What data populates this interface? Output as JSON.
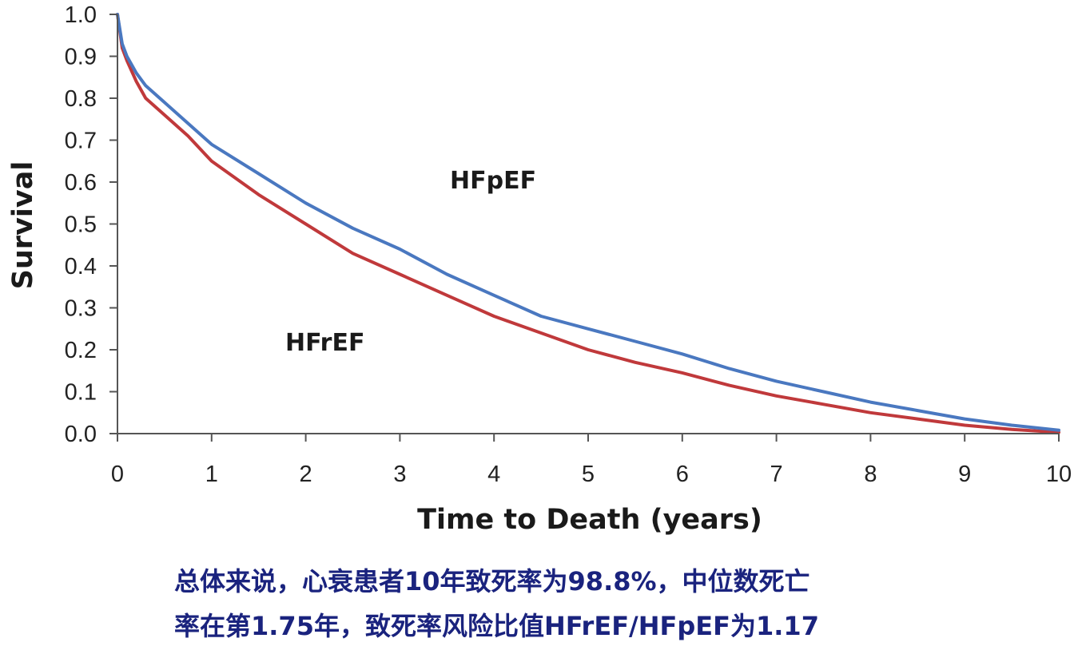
{
  "chart_data": {
    "type": "line",
    "xlabel": "Time to Death (years)",
    "ylabel": "Survival",
    "xlim": [
      0,
      10
    ],
    "ylim": [
      0,
      1
    ],
    "x_ticks": [
      "0",
      "1",
      "2",
      "3",
      "4",
      "5",
      "6",
      "7",
      "8",
      "9",
      "10"
    ],
    "y_ticks": [
      "0.0",
      "0.1",
      "0.2",
      "0.3",
      "0.4",
      "0.5",
      "0.6",
      "0.7",
      "0.8",
      "0.9",
      "1.0"
    ],
    "grid": false,
    "series": [
      {
        "name": "HFpEF",
        "color": "#4a78c0",
        "x": [
          0,
          0.05,
          0.1,
          0.2,
          0.3,
          0.5,
          0.75,
          1,
          1.5,
          2,
          2.5,
          3,
          3.5,
          4,
          4.5,
          5,
          5.5,
          6,
          6.5,
          7,
          7.5,
          8,
          8.5,
          9,
          9.5,
          10
        ],
        "y": [
          1.0,
          0.93,
          0.9,
          0.86,
          0.83,
          0.79,
          0.74,
          0.69,
          0.62,
          0.55,
          0.49,
          0.44,
          0.38,
          0.33,
          0.28,
          0.25,
          0.22,
          0.19,
          0.155,
          0.125,
          0.1,
          0.075,
          0.055,
          0.035,
          0.02,
          0.008
        ]
      },
      {
        "name": "HFrEF",
        "color": "#c0393b",
        "x": [
          0,
          0.05,
          0.1,
          0.2,
          0.3,
          0.5,
          0.75,
          1,
          1.5,
          2,
          2.5,
          3,
          3.5,
          4,
          4.5,
          5,
          5.5,
          6,
          6.5,
          7,
          7.5,
          8,
          8.5,
          9,
          9.5,
          10
        ],
        "y": [
          1.0,
          0.92,
          0.89,
          0.84,
          0.8,
          0.76,
          0.71,
          0.65,
          0.57,
          0.5,
          0.43,
          0.38,
          0.33,
          0.28,
          0.24,
          0.2,
          0.17,
          0.145,
          0.115,
          0.09,
          0.07,
          0.05,
          0.035,
          0.02,
          0.01,
          0.003
        ]
      }
    ]
  },
  "caption": {
    "line1": "总体来说，心衰患者10年致死率为98.8%，中位数死亡",
    "line2": "率在第1.75年，致死率风险比值HFrEF/HFpEF为1.17"
  }
}
